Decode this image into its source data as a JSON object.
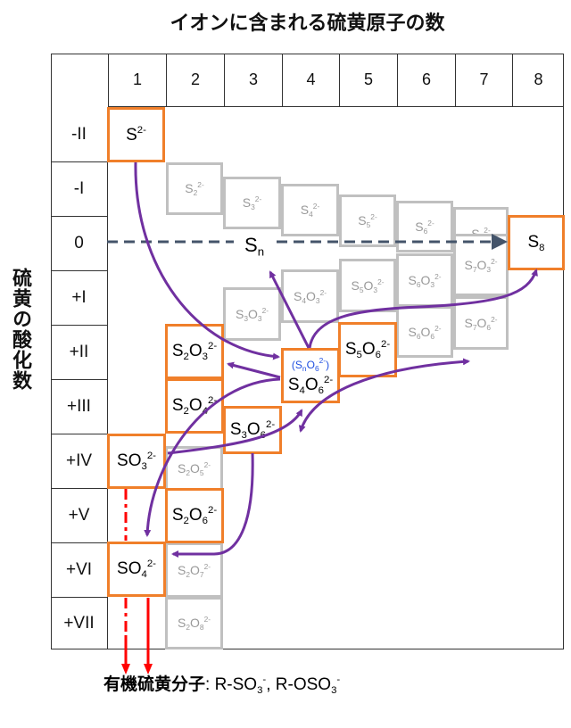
{
  "title": "イオンに含まれる硫黄原子の数",
  "y_axis_label": "硫黄の酸化数",
  "columns": [
    "1",
    "2",
    "3",
    "4",
    "5",
    "6",
    "7",
    "8"
  ],
  "rows": [
    "-II",
    "-I",
    "0",
    "+I",
    "+II",
    "+III",
    "+IV",
    "+V",
    "+VI",
    "+VII"
  ],
  "species": {
    "S2m": {
      "base": "S",
      "sub": "",
      "sup": "2-",
      "style": "orange"
    },
    "S2_2m": {
      "base": "S",
      "sub": "2",
      "sup": "2-",
      "style": "gray"
    },
    "S3_2m": {
      "base": "S",
      "sub": "3",
      "sup": "2-",
      "style": "gray"
    },
    "S4_2m": {
      "base": "S",
      "sub": "4",
      "sup": "2-",
      "style": "gray"
    },
    "S5_2m": {
      "base": "S",
      "sub": "5",
      "sup": "2-",
      "style": "gray"
    },
    "S6_2m": {
      "base": "S",
      "sub": "6",
      "sup": "2-",
      "style": "gray"
    },
    "S7_2m": {
      "base": "S",
      "sub": "7",
      "sup": "2-",
      "style": "gray"
    },
    "S8": {
      "base": "S",
      "sub": "8",
      "sup": "",
      "style": "orange"
    },
    "S3O3": {
      "base": "S",
      "sub": "3",
      "mid": "O",
      "sub2": "3",
      "sup": "2-",
      "style": "gray"
    },
    "S4O3": {
      "base": "S",
      "sub": "4",
      "mid": "O",
      "sub2": "3",
      "sup": "2-",
      "style": "gray"
    },
    "S5O3": {
      "base": "S",
      "sub": "5",
      "mid": "O",
      "sub2": "3",
      "sup": "2-",
      "style": "gray"
    },
    "S6O3": {
      "base": "S",
      "sub": "6",
      "mid": "O",
      "sub2": "3",
      "sup": "2-",
      "style": "gray"
    },
    "S7O3": {
      "base": "S",
      "sub": "7",
      "mid": "O",
      "sub2": "3",
      "sup": "2-",
      "style": "gray"
    },
    "S6O6": {
      "base": "S",
      "sub": "6",
      "mid": "O",
      "sub2": "6",
      "sup": "2-",
      "style": "gray"
    },
    "S7O6": {
      "base": "S",
      "sub": "7",
      "mid": "O",
      "sub2": "6",
      "sup": "2-",
      "style": "gray"
    },
    "S2O3": {
      "base": "S",
      "sub": "2",
      "mid": "O",
      "sub2": "3",
      "sup": "2-",
      "style": "orange"
    },
    "S2O4": {
      "base": "S",
      "sub": "2",
      "mid": "O",
      "sub2": "4",
      "sup": "2-",
      "style": "orange"
    },
    "S3O6": {
      "base": "S",
      "sub": "3",
      "mid": "O",
      "sub2": "6",
      "sup": "2-",
      "style": "orange"
    },
    "S4O6": {
      "base": "S",
      "sub": "4",
      "mid": "O",
      "sub2": "6",
      "sup": "2-",
      "style": "orange"
    },
    "S5O6": {
      "base": "S",
      "sub": "5",
      "mid": "O",
      "sub2": "6",
      "sup": "2-",
      "style": "orange"
    },
    "SO3": {
      "base": "SO",
      "sub": "3",
      "sup": "2-",
      "style": "orange"
    },
    "S2O5": {
      "base": "S",
      "sub": "2",
      "mid": "O",
      "sub2": "5",
      "sup": "2-",
      "style": "gray"
    },
    "S2O6": {
      "base": "S",
      "sub": "2",
      "mid": "O",
      "sub2": "6",
      "sup": "2-",
      "style": "orange"
    },
    "SO4": {
      "base": "SO",
      "sub": "4",
      "sup": "2-",
      "style": "orange"
    },
    "S2O7": {
      "base": "S",
      "sub": "2",
      "mid": "O",
      "sub2": "7",
      "sup": "2-",
      "style": "gray"
    },
    "S2O8": {
      "base": "S",
      "sub": "2",
      "mid": "O",
      "sub2": "8",
      "sup": "2-",
      "style": "gray"
    }
  },
  "general_note": {
    "open": "(S",
    "sub": "n",
    "mid": "O",
    "sub2": "6",
    "sup": "2-",
    "close": ")"
  },
  "sn_label": {
    "base": "S",
    "sub": "n"
  },
  "bottom_label": {
    "jp": "有機硫黄分子",
    "rest1": ": R-SO",
    "sub1": "3",
    "sup1": "-",
    "rest2": ", R-OSO",
    "sub2": "3",
    "sup2": "-"
  },
  "colors": {
    "orange": "#f07f2a",
    "gray": "#c0c0c0",
    "purple": "#7030a0",
    "navy": "#44546a",
    "red": "#ff0000",
    "note_blue": "#1f4fe0"
  }
}
